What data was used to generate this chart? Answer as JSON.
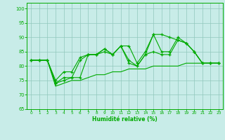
{
  "title": "",
  "xlabel": "Humidité relative (%)",
  "ylabel": "",
  "background_color": "#c8ece8",
  "grid_color": "#90c8bc",
  "line_color": "#00aa00",
  "xlim": [
    -0.5,
    23.5
  ],
  "ylim": [
    65,
    102
  ],
  "yticks": [
    65,
    70,
    75,
    80,
    85,
    90,
    95,
    100
  ],
  "xticks": [
    0,
    1,
    2,
    3,
    4,
    5,
    6,
    7,
    8,
    9,
    10,
    11,
    12,
    13,
    14,
    15,
    16,
    17,
    18,
    19,
    20,
    21,
    22,
    23
  ],
  "series_upper": [
    82,
    82,
    82,
    74,
    75,
    76,
    76,
    84,
    84,
    86,
    84,
    87,
    81,
    80,
    84,
    91,
    91,
    90,
    89,
    88,
    85,
    81,
    81,
    81
  ],
  "series_mid1": [
    82,
    82,
    82,
    75,
    78,
    78,
    83,
    84,
    84,
    86,
    84,
    87,
    87,
    81,
    85,
    91,
    85,
    85,
    90,
    88,
    85,
    81,
    81,
    81
  ],
  "series_mid2": [
    82,
    82,
    82,
    74,
    76,
    76,
    82,
    84,
    84,
    85,
    84,
    87,
    82,
    80,
    84,
    85,
    84,
    84,
    89,
    88,
    85,
    81,
    81,
    81
  ],
  "series_lower": [
    82,
    82,
    82,
    73,
    74,
    75,
    75,
    76,
    77,
    77,
    78,
    78,
    79,
    79,
    79,
    80,
    80,
    80,
    80,
    81,
    81,
    81,
    81,
    81
  ]
}
